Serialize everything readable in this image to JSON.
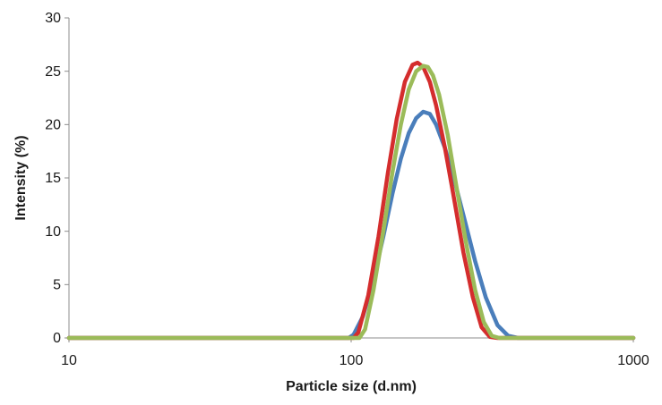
{
  "chart_data": {
    "type": "line",
    "title": "",
    "xlabel": "Particle size (d.nm)",
    "ylabel": "Intensity (%)",
    "x_scale": "log",
    "xlim": [
      10,
      1000
    ],
    "ylim": [
      0,
      30
    ],
    "x_ticks": [
      "10",
      "100",
      "1000"
    ],
    "y_ticks": [
      "0",
      "5",
      "10",
      "15",
      "20",
      "25",
      "30"
    ],
    "grid": false,
    "legend": "none",
    "series": [
      {
        "color": "#4a7ebb",
        "x": [
          10,
          80,
          98,
          102,
          110,
          120,
          130,
          140,
          150,
          160,
          170,
          180,
          190,
          200,
          215,
          230,
          250,
          275,
          300,
          330,
          360,
          390,
          420,
          1000
        ],
        "y": [
          0,
          0,
          0,
          0.3,
          2.0,
          5.5,
          9.5,
          13.5,
          16.8,
          19.2,
          20.6,
          21.2,
          21.0,
          20.0,
          17.8,
          15.2,
          11.5,
          7.2,
          3.8,
          1.2,
          0.2,
          0,
          0,
          0
        ]
      },
      {
        "color": "#d42d2d",
        "x": [
          10,
          90,
          102,
          106,
          115,
          125,
          135,
          145,
          155,
          165,
          172,
          180,
          190,
          200,
          215,
          230,
          250,
          270,
          290,
          310,
          330,
          1000
        ],
        "y": [
          0,
          0,
          0,
          0.5,
          4.0,
          9.5,
          15.5,
          20.5,
          24.0,
          25.6,
          25.8,
          25.4,
          24.0,
          21.8,
          17.8,
          13.5,
          8.0,
          3.8,
          1.0,
          0.1,
          0,
          0
        ]
      },
      {
        "color": "#9bbb59",
        "x": [
          10,
          95,
          107,
          112,
          120,
          130,
          140,
          150,
          160,
          170,
          180,
          187,
          195,
          205,
          220,
          235,
          255,
          275,
          295,
          315,
          335,
          1000
        ],
        "y": [
          0,
          0,
          0,
          0.8,
          4.5,
          10.0,
          15.5,
          20.0,
          23.3,
          25.0,
          25.5,
          25.4,
          24.6,
          22.8,
          19.0,
          14.5,
          9.0,
          4.5,
          1.5,
          0.2,
          0,
          0
        ]
      }
    ]
  }
}
